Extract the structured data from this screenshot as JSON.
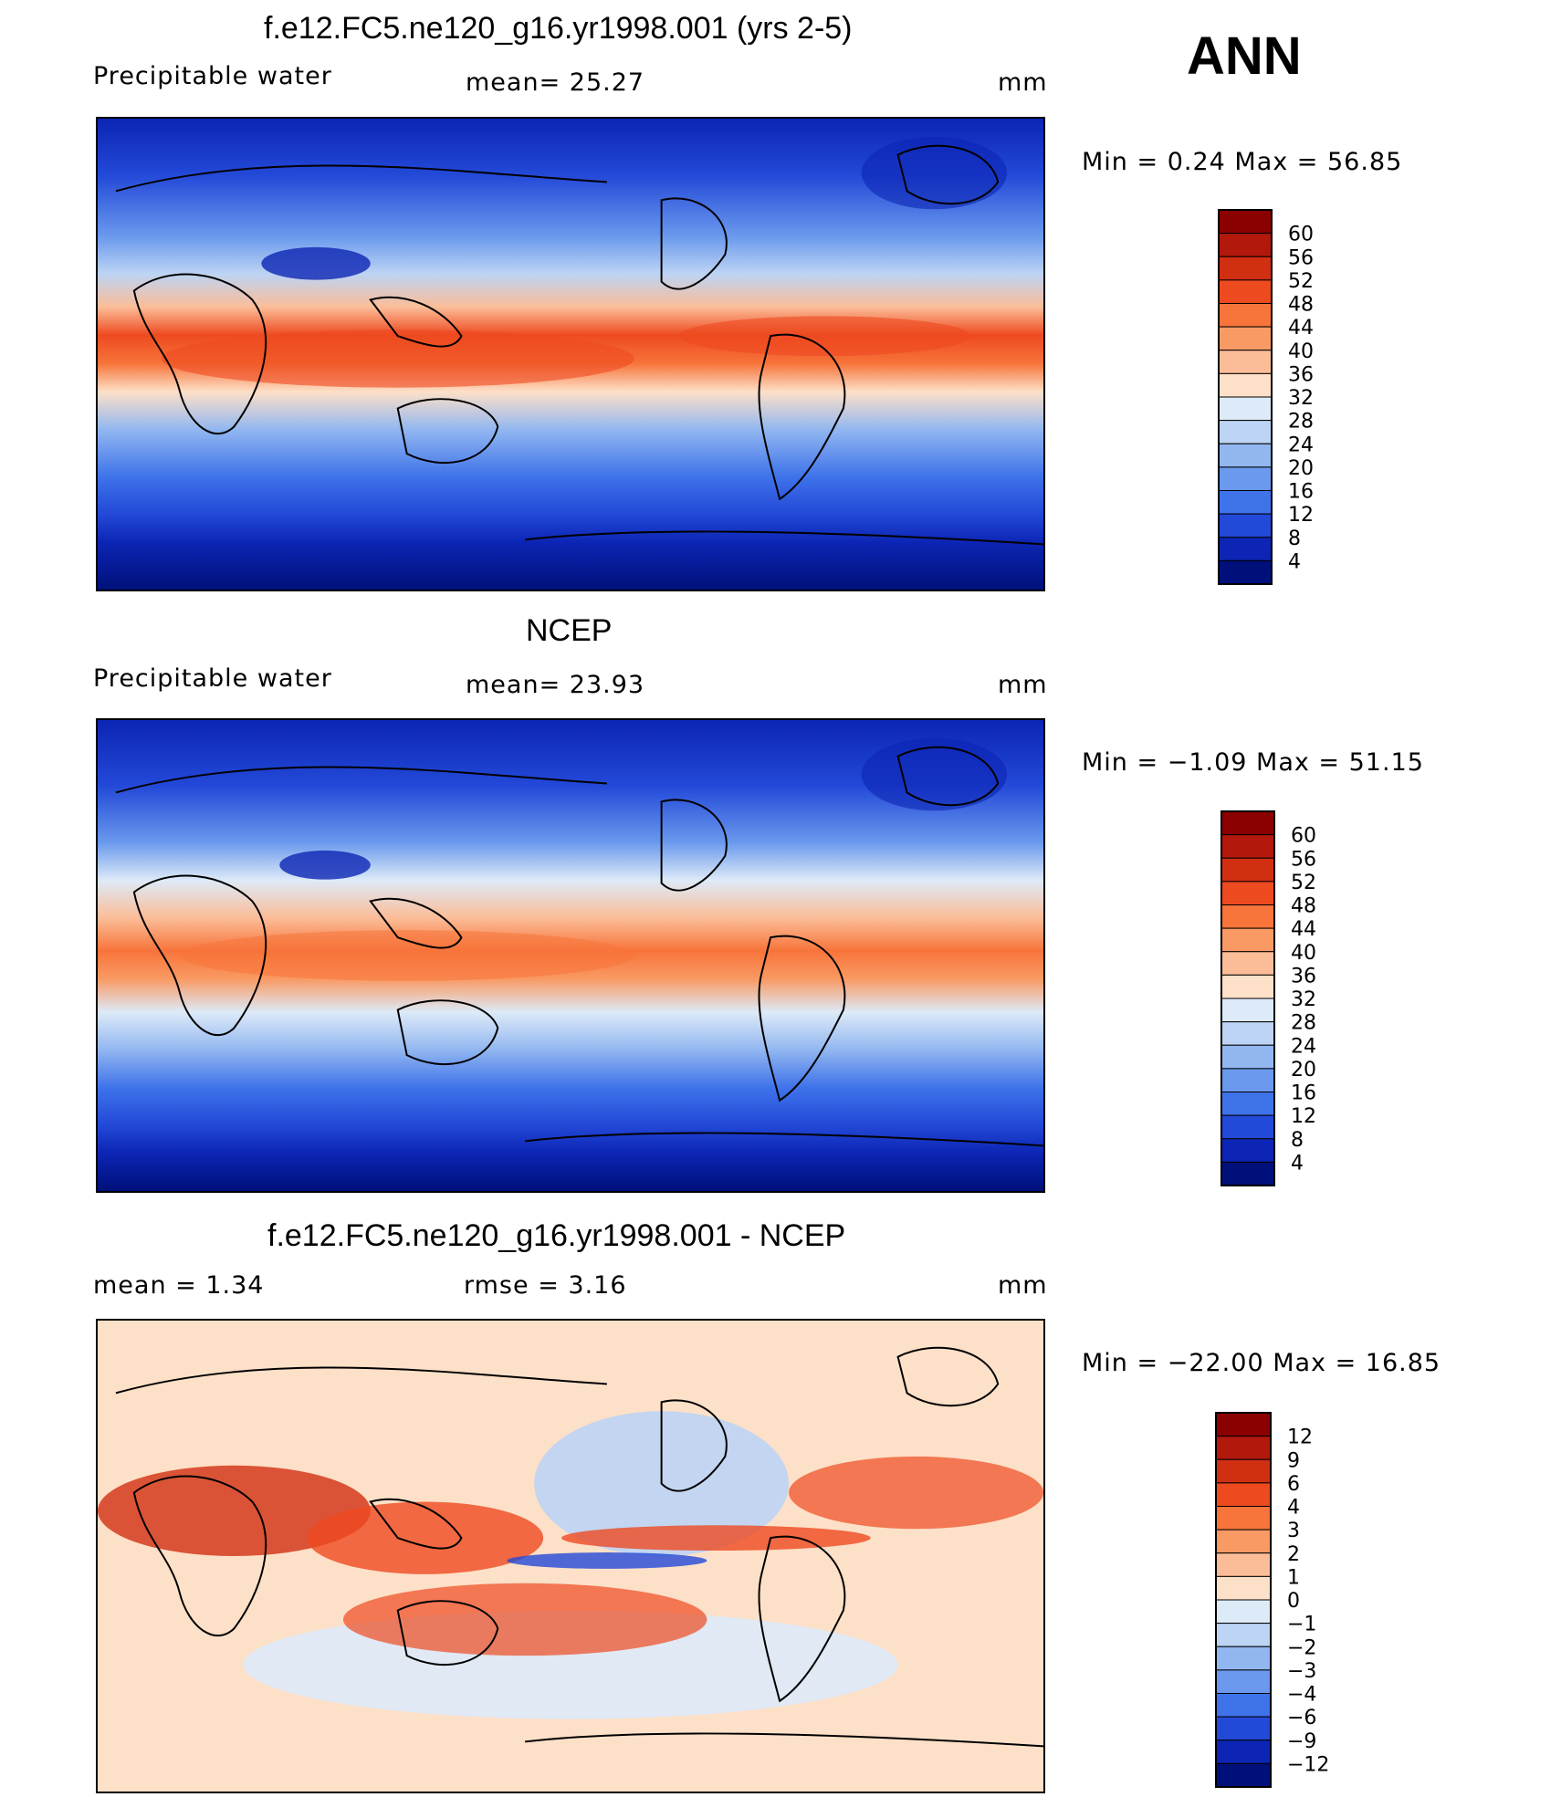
{
  "header": {
    "season": "ANN"
  },
  "panels": [
    {
      "title": "f.e12.FC5.ne120_g16.yr1998.001 (yrs 2-5)",
      "left_label": "Precipitable  water",
      "mid_label": "mean=   25.27",
      "units": "mm",
      "minmax": "Min  =     0.24  Max  =     56.85",
      "colorbar": {
        "labels": [
          "60",
          "56",
          "52",
          "48",
          "44",
          "40",
          "36",
          "32",
          "28",
          "24",
          "20",
          "16",
          "12",
          "8",
          "4"
        ],
        "colors": [
          "#8b0000",
          "#b2180c",
          "#d12f12",
          "#ee4a20",
          "#f7743a",
          "#f99a64",
          "#fbbd98",
          "#fde0c8",
          "#ddeaf8",
          "#bdd4f4",
          "#92b7f0",
          "#6a99ed",
          "#3f73ea",
          "#2349d8",
          "#0c25b4",
          "#00107a"
        ]
      }
    },
    {
      "title": "NCEP",
      "left_label": "Precipitable  water",
      "mid_label": "mean=   23.93",
      "units": "mm",
      "minmax": "Min  =   −1.09  Max  =    51.15",
      "colorbar": {
        "labels": [
          "60",
          "56",
          "52",
          "48",
          "44",
          "40",
          "36",
          "32",
          "28",
          "24",
          "20",
          "16",
          "12",
          "8",
          "4"
        ],
        "colors": [
          "#8b0000",
          "#b2180c",
          "#d12f12",
          "#ee4a20",
          "#f7743a",
          "#f99a64",
          "#fbbd98",
          "#fde0c8",
          "#ddeaf8",
          "#bdd4f4",
          "#92b7f0",
          "#6a99ed",
          "#3f73ea",
          "#2349d8",
          "#0c25b4",
          "#00107a"
        ]
      }
    },
    {
      "title": "f.e12.FC5.ne120_g16.yr1998.001 - NCEP",
      "left_label": "mean  =      1.34",
      "mid_label": "rmse  =      3.16",
      "units": "mm",
      "minmax": "Min  =  −22.00  Max  =    16.85",
      "colorbar": {
        "labels": [
          "12",
          "9",
          "6",
          "4",
          "3",
          "2",
          "1",
          "0",
          "−1",
          "−2",
          "−3",
          "−4",
          "−6",
          "−9",
          "−12"
        ],
        "colors": [
          "#8b0000",
          "#b2180c",
          "#d12f12",
          "#ee4a20",
          "#f7743a",
          "#f99a64",
          "#fbbd98",
          "#fde0c8",
          "#ddeaf8",
          "#bdd4f4",
          "#92b7f0",
          "#6a99ed",
          "#3f73ea",
          "#2349d8",
          "#0c25b4",
          "#00107a"
        ]
      }
    }
  ]
}
